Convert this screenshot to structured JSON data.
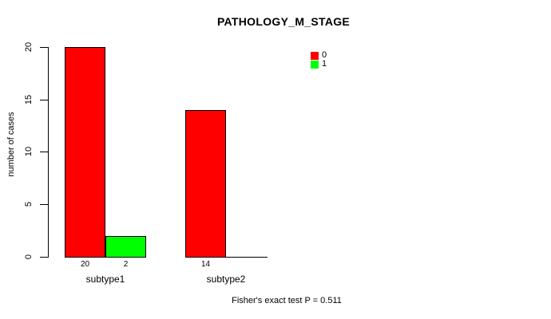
{
  "title": "PATHOLOGY_M_STAGE",
  "legend": {
    "items": [
      {
        "label": "0",
        "color": "#ff0000"
      },
      {
        "label": "1",
        "color": "#00ff00"
      }
    ]
  },
  "footer": {
    "text": "Fisher's exact test P = 0.511"
  },
  "chart_data": {
    "type": "bar",
    "title": "PATHOLOGY_M_STAGE",
    "ylabel": "number of cases",
    "xlabel": "",
    "categories": [
      "subtype1",
      "subtype2"
    ],
    "series": [
      {
        "name": "0",
        "color": "#ff0000",
        "values": [
          20,
          14
        ]
      },
      {
        "name": "1",
        "color": "#00ff00",
        "values": [
          2,
          0
        ]
      }
    ],
    "bar_labels": [
      [
        "20",
        "2"
      ],
      [
        "14",
        ""
      ]
    ],
    "y_ticks": [
      0,
      5,
      10,
      15,
      20
    ],
    "ylim": [
      0,
      20
    ],
    "grid": false,
    "legend_position": "top-right",
    "annotation": "Fisher's exact test P = 0.511"
  }
}
